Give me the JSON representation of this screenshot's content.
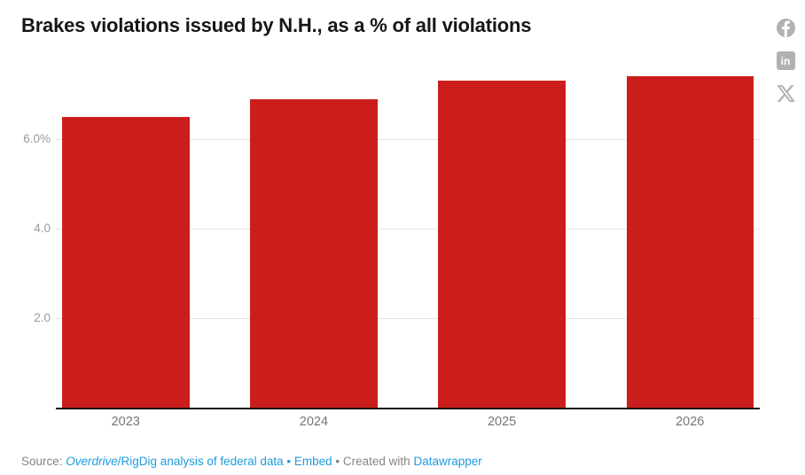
{
  "header": {
    "title": "Brakes violations issued by N.H., as a % of all violations"
  },
  "share": {
    "icons": [
      {
        "name": "facebook-icon"
      },
      {
        "name": "linkedin-icon",
        "glyph": "in"
      },
      {
        "name": "x-icon"
      }
    ]
  },
  "chart_data": {
    "type": "bar",
    "title": "Brakes violations issued by N.H., as a % of all violations",
    "categories": [
      "2023",
      "2024",
      "2025",
      "2026"
    ],
    "values": [
      6.5,
      6.9,
      7.3,
      7.4
    ],
    "unit": "%",
    "xlabel": "",
    "ylabel": "",
    "ylim": [
      0,
      7.6
    ],
    "yticks": [
      {
        "value": 2.0,
        "label": "2.0"
      },
      {
        "value": 4.0,
        "label": "4.0"
      },
      {
        "value": 6.0,
        "label": "6.0%"
      }
    ],
    "grid": "horizontal",
    "legend": "none",
    "bar_color": "#cb1e1c"
  },
  "footer": {
    "source_label": "Source: ",
    "source_link_italic": "Overdrive",
    "source_link_rest": "/RigDig analysis of federal data",
    "separator1": " • ",
    "embed_label": "Embed",
    "separator2": "  • ",
    "created_with": "Created with ",
    "datawrapper_label": "Datawrapper"
  },
  "colors": {
    "bar": "#cb1e1c",
    "title": "#161616",
    "link_blue": "#1f9bde",
    "grid": "#e3e3e3",
    "axis": "#161616",
    "ytick_text": "#9b9b9b",
    "xtick_text": "#757575",
    "footer_text": "#858585",
    "icon_gray": "#b1b1b1"
  }
}
